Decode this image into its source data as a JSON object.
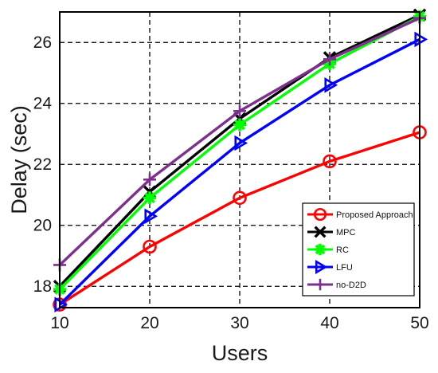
{
  "chart_data": {
    "type": "line",
    "title": "",
    "xlabel": "Users",
    "ylabel": "Delay (sec)",
    "x": [
      10,
      20,
      30,
      40,
      50
    ],
    "xticks": [
      "10",
      "20",
      "30",
      "40",
      "50"
    ],
    "yticks": [
      "18",
      "20",
      "22",
      "24",
      "26"
    ],
    "xlim": [
      10,
      50
    ],
    "ylim": [
      17.3,
      27
    ],
    "grid": true,
    "legend_position": "bottom-right",
    "series": [
      {
        "name": "Proposed Approach",
        "values": [
          17.4,
          19.3,
          20.9,
          22.1,
          23.05
        ],
        "color": "#ff0000",
        "marker": "circle"
      },
      {
        "name": "MPC",
        "values": [
          18.0,
          21.1,
          23.5,
          25.5,
          26.9
        ],
        "color": "#000000",
        "marker": "x"
      },
      {
        "name": "RC",
        "values": [
          17.9,
          20.9,
          23.3,
          25.3,
          26.85
        ],
        "color": "#00ff00",
        "marker": "star"
      },
      {
        "name": "LFU",
        "values": [
          17.4,
          20.3,
          22.7,
          24.6,
          26.1
        ],
        "color": "#0000ff",
        "marker": "triangle-right"
      },
      {
        "name": "no-D2D",
        "values": [
          18.7,
          21.5,
          23.75,
          25.45,
          26.8
        ],
        "color": "#7e2f8e",
        "marker": "plus"
      }
    ]
  }
}
